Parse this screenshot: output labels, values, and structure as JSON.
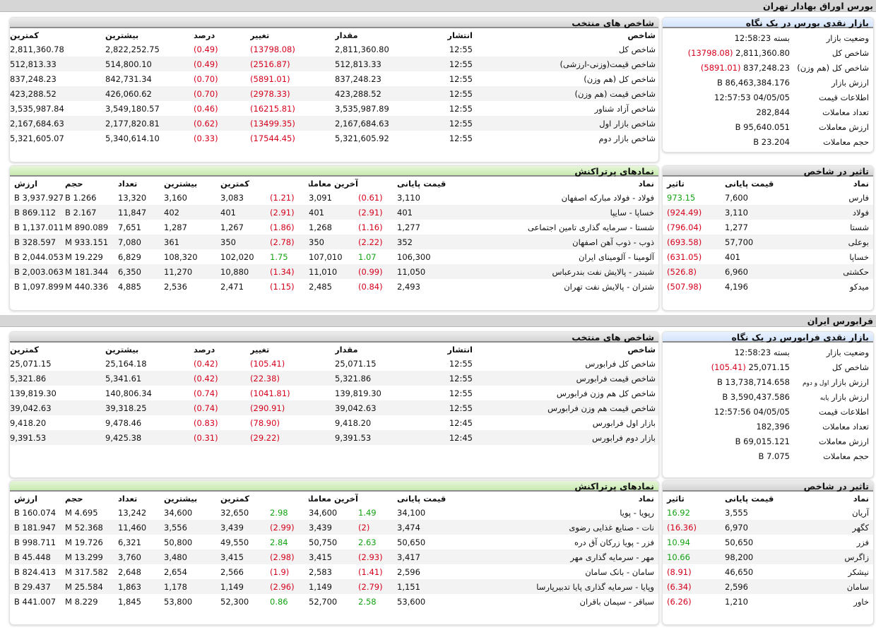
{
  "tehran": {
    "bar_title": "بورس اوراق بهادار تهران",
    "summary": {
      "title": "بازار نقدی بورس در یک نگاه",
      "rows": [
        {
          "label": "وضعیت بازار",
          "value": "بسته 12:58:23",
          "neg": ""
        },
        {
          "label": "شاخص کل",
          "value": "2,811,360.80",
          "neg": "(13798.08)"
        },
        {
          "label": "شاخص کل (هم وزن)",
          "value": "837,248.23",
          "neg": "(5891.01)"
        },
        {
          "label": "ارزش بازار",
          "value": "86,463,384.176 B",
          "neg": ""
        },
        {
          "label": "اطلاعات قیمت",
          "value": "04/05/05 12:57:53",
          "neg": ""
        },
        {
          "label": "تعداد معاملات",
          "value": "282,844",
          "neg": ""
        },
        {
          "label": "ارزش معاملات",
          "value": "95,640.051 B",
          "neg": ""
        },
        {
          "label": "حجم معاملات",
          "value": "23.204 B",
          "neg": ""
        }
      ]
    },
    "indices": {
      "title": "شاخص های منتخب",
      "headers": [
        "شاخص",
        "انتشار",
        "مقدار",
        "تغییر",
        "درصد",
        "بیشترین",
        "کمترین"
      ],
      "rows": [
        [
          "شاخص کل",
          "12:55",
          "2,811,360.80",
          "(13798.08)",
          "(0.49)",
          "2,822,252.75",
          "2,811,360.78"
        ],
        [
          "شاخص قیمت(وزنی-ارزشی)",
          "12:55",
          "512,813.33",
          "(2516.87)",
          "(0.49)",
          "514,800.10",
          "512,813.33"
        ],
        [
          "شاخص کل (هم وزن)",
          "12:55",
          "837,248.23",
          "(5891.01)",
          "(0.70)",
          "842,731.34",
          "837,248.23"
        ],
        [
          "شاخص قیمت (هم وزن)",
          "12:55",
          "423,288.52",
          "(2978.33)",
          "(0.70)",
          "426,060.62",
          "423,288.52"
        ],
        [
          "شاخص آزاد شناور",
          "12:55",
          "3,535,987.89",
          "(16215.81)",
          "(0.46)",
          "3,549,180.57",
          "3,535,987.84"
        ],
        [
          "شاخص بازار اول",
          "12:55",
          "2,167,684.63",
          "(13499.35)",
          "(0.62)",
          "2,177,820.81",
          "2,167,684.63"
        ],
        [
          "شاخص بازار دوم",
          "12:55",
          "5,321,605.92",
          "(17544.45)",
          "(0.33)",
          "5,340,614.10",
          "5,321,605.07"
        ]
      ]
    },
    "impact": {
      "title": "تاثیر در شاخص",
      "headers": [
        "نماد",
        "قیمت پایانی",
        "تاثیر"
      ],
      "rows": [
        [
          "فارس",
          "7,600",
          "973.15"
        ],
        [
          "فولاد",
          "3,110",
          "(924.49)"
        ],
        [
          "شستا",
          "1,277",
          "(796.04)"
        ],
        [
          "بوعلی",
          "57,700",
          "(693.58)"
        ],
        [
          "خساپا",
          "401",
          "(631.05)"
        ],
        [
          "حکشتی",
          "6,960",
          "(526.8)"
        ],
        [
          "میدکو",
          "4,196",
          "(507.98)"
        ]
      ]
    },
    "active": {
      "title": "نمادهای پرتراکنش",
      "headers": [
        "نماد",
        "قیمت پایانی",
        "",
        "آخرین معامله",
        "",
        "کمترین",
        "بیشترین",
        "تعداد",
        "حجم",
        "ارزش"
      ],
      "rows": [
        [
          "فولاد - فولاد مبارکه اصفهان",
          "3,110",
          "(0.61)",
          "3,091",
          "(1.21)",
          "3,083",
          "3,160",
          "13,320",
          "1.266 B",
          "3,937.927 B"
        ],
        [
          "خساپا - سایپا",
          "401",
          "(2.91)",
          "401",
          "(2.91)",
          "401",
          "402",
          "11,847",
          "2.167 B",
          "869.112 B"
        ],
        [
          "شستا - سرمایه گذاری تامین اجتماعی",
          "1,277",
          "(1.16)",
          "1,268",
          "(1.86)",
          "1,267",
          "1,287",
          "7,651",
          "890.089 M",
          "1,137.011 B"
        ],
        [
          "ذوب - ذوب آهن اصفهان",
          "352",
          "(2.22)",
          "350",
          "(2.78)",
          "350",
          "361",
          "7,080",
          "933.151 M",
          "328.597 B"
        ],
        [
          "آلومینا - آلومینای ایران",
          "106,300",
          "1.07",
          "107,010",
          "1.75",
          "102,020",
          "108,320",
          "6,829",
          "19.229 M",
          "2,044.053 B"
        ],
        [
          "شبندر - پالایش نفت بندرعباس",
          "11,050",
          "(0.99)",
          "11,010",
          "(1.34)",
          "10,880",
          "11,270",
          "6,350",
          "181.344 M",
          "2,003.063 B"
        ],
        [
          "شتران - پالایش نفت تهران",
          "2,493",
          "(0.84)",
          "2,485",
          "(1.15)",
          "2,471",
          "2,536",
          "4,885",
          "440.336 M",
          "1,097.899 B"
        ]
      ]
    }
  },
  "farabourse": {
    "bar_title": "فرابورس ایران",
    "summary": {
      "title": "بازار نقدی فرابورس در یک نگاه",
      "rows": [
        {
          "label": "وضعیت بازار",
          "value": "بسته 12:58:23",
          "neg": ""
        },
        {
          "label": "شاخص کل",
          "value": "25,071.15",
          "neg": "(105.41)"
        },
        {
          "label": "ارزش بازار",
          "label_small": "اول و دوم",
          "value": "13,738,714.658 B",
          "neg": ""
        },
        {
          "label": "ارزش بازار",
          "label_small": "پایه",
          "value": "3,590,437.586 B",
          "neg": ""
        },
        {
          "label": "اطلاعات قیمت",
          "value": "04/05/05 12:57:56",
          "neg": ""
        },
        {
          "label": "تعداد معاملات",
          "value": "182,396",
          "neg": ""
        },
        {
          "label": "ارزش معاملات",
          "value": "69,015.121 B",
          "neg": ""
        },
        {
          "label": "حجم معاملات",
          "value": "7.075 B",
          "neg": ""
        }
      ]
    },
    "indices": {
      "title": "شاخص های منتخب",
      "headers": [
        "شاخص",
        "انتشار",
        "مقدار",
        "تغییر",
        "درصد",
        "بیشترین",
        "کمترین"
      ],
      "rows": [
        [
          "شاخص کل فرابورس",
          "12:55",
          "25,071.15",
          "(105.41)",
          "(0.42)",
          "25,164.18",
          "25,071.15"
        ],
        [
          "شاخص قیمت فرابورس",
          "12:55",
          "5,321.86",
          "(22.38)",
          "(0.42)",
          "5,341.61",
          "5,321.86"
        ],
        [
          "شاخص کل هم وزن فرابورس",
          "12:55",
          "139,819.30",
          "(1041.81)",
          "(0.74)",
          "140,806.34",
          "139,819.30"
        ],
        [
          "شاخص قیمت هم وزن فرابورس",
          "12:55",
          "39,042.63",
          "(290.91)",
          "(0.74)",
          "39,318.25",
          "39,042.63"
        ],
        [
          "بازار اول فرابورس",
          "12:45",
          "9,418.20",
          "(78.90)",
          "(0.83)",
          "9,478.46",
          "9,418.20"
        ],
        [
          "بازار دوم فرابورس",
          "12:45",
          "9,391.53",
          "(29.22)",
          "(0.31)",
          "9,425.38",
          "9,391.53"
        ]
      ]
    },
    "impact": {
      "title": "تاثیر در شاخص",
      "headers": [
        "نماد",
        "قیمت پایانی",
        "تاثیر"
      ],
      "rows": [
        [
          "آریان",
          "3,555",
          "16.92"
        ],
        [
          "کگهر",
          "6,970",
          "(16.36)"
        ],
        [
          "فزر",
          "50,650",
          "10.94"
        ],
        [
          "زاگرس",
          "98,200",
          "10.66"
        ],
        [
          "نیشکر",
          "46,650",
          "(8.91)"
        ],
        [
          "سامان",
          "2,596",
          "(6.34)"
        ],
        [
          "خاور",
          "1,210",
          "(6.26)"
        ]
      ]
    },
    "active": {
      "title": "نمادهای پرتراکنش",
      "headers": [
        "نماد",
        "قیمت پایانی",
        "",
        "آخرین معامله",
        "",
        "کمترین",
        "بیشترین",
        "تعداد",
        "حجم",
        "ارزش"
      ],
      "rows": [
        [
          "رپویا - پویا",
          "34,100",
          "1.49",
          "34,600",
          "2.98",
          "32,650",
          "34,600",
          "13,242",
          "4.695 M",
          "160.074 B"
        ],
        [
          "نات - صنایع غذایی رضوی",
          "3,474",
          "(2)",
          "3,439",
          "(2.99)",
          "3,439",
          "3,556",
          "11,460",
          "52.368 M",
          "181.947 B"
        ],
        [
          "فزر - پویا زرکان آق دره",
          "50,650",
          "2.63",
          "50,750",
          "2.84",
          "49,550",
          "50,800",
          "6,321",
          "19.726 M",
          "998.711 B"
        ],
        [
          "مهر - سرمایه گذاری مهر",
          "3,417",
          "(2.93)",
          "3,415",
          "(2.98)",
          "3,415",
          "3,480",
          "3,760",
          "13.299 M",
          "45.448 B"
        ],
        [
          "سامان - بانک سامان",
          "2,596",
          "(1.41)",
          "2,583",
          "(1.9)",
          "2,566",
          "2,654",
          "2,648",
          "317.582 M",
          "824.413 B"
        ],
        [
          "وپایا - سرمایه گذاری پایا تدبیرپارسا",
          "1,151",
          "(2.79)",
          "1,149",
          "(2.96)",
          "1,149",
          "1,178",
          "1,863",
          "25.584 M",
          "29.437 B"
        ],
        [
          "سباقر - سیمان باقران",
          "53,600",
          "2.58",
          "52,700",
          "0.86",
          "52,300",
          "53,800",
          "1,845",
          "8.229 M",
          "441.007 B"
        ]
      ]
    }
  },
  "colors": {
    "negative": "#d6001c",
    "positive": "#13a313",
    "summary_header": "#d5e4fb",
    "active_header": "#c7eab0",
    "bar": "#d6d6d6"
  }
}
